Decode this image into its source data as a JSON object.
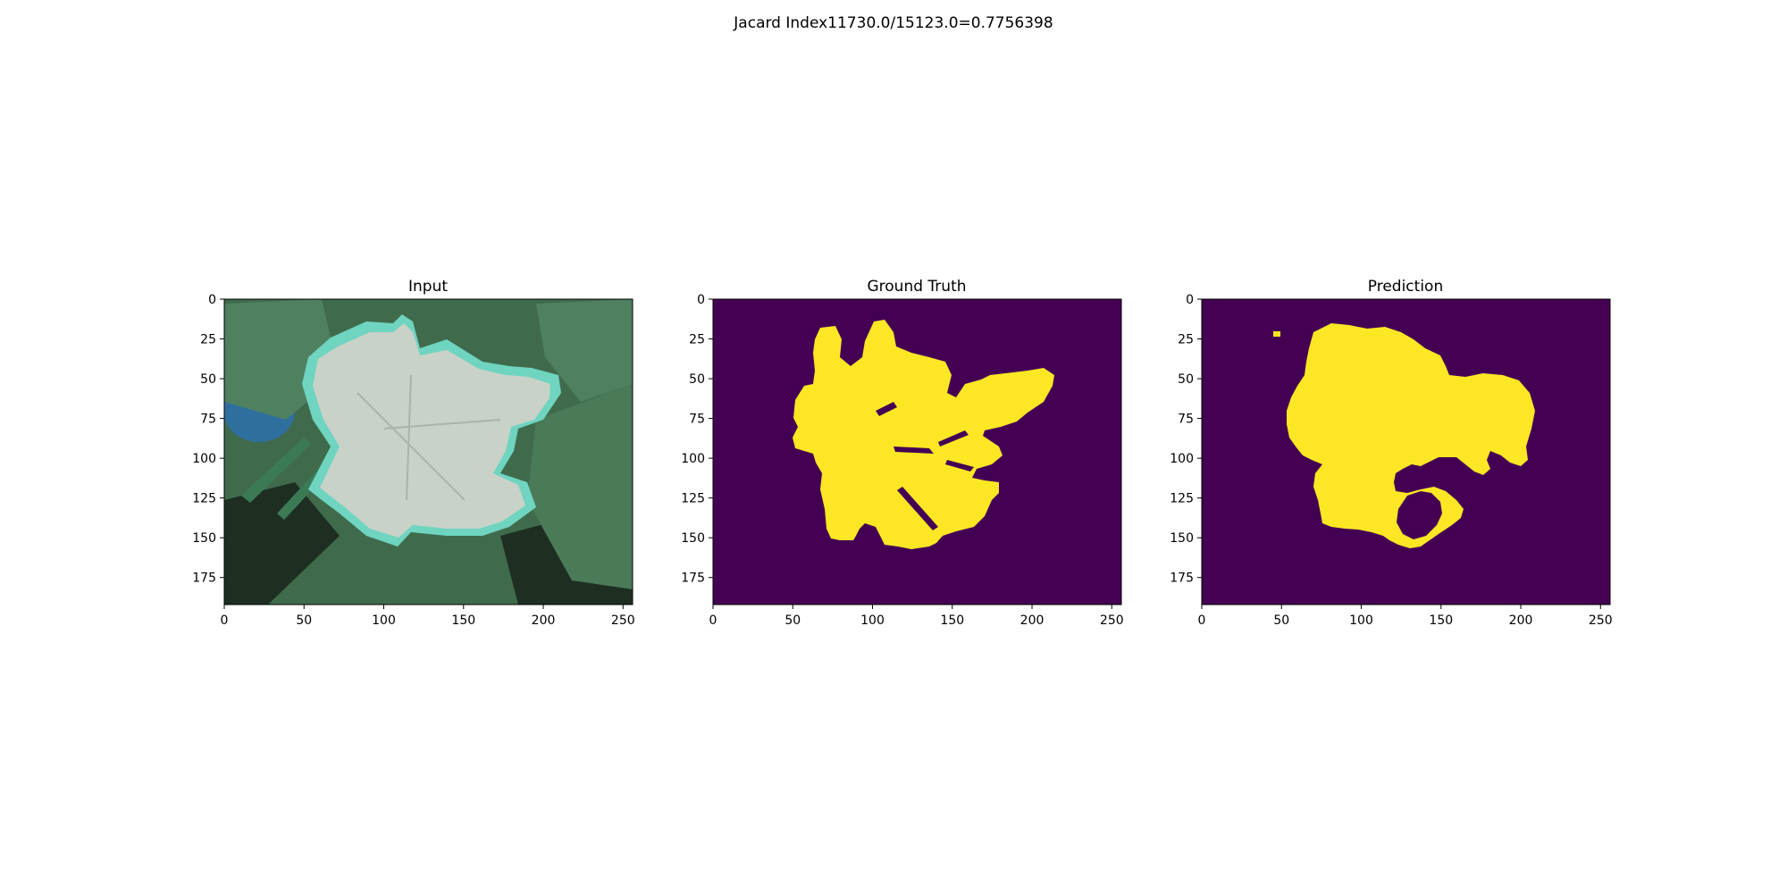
{
  "suptitle": "Jacard Index11730.0/15123.0=0.7756398",
  "chart_data": [
    {
      "type": "image",
      "title": "Input",
      "xlim": [
        0,
        256
      ],
      "ylim": [
        192,
        0
      ],
      "xticks": [
        0,
        50,
        100,
        150,
        200,
        250
      ],
      "yticks": [
        0,
        25,
        50,
        75,
        100,
        125,
        150,
        175
      ],
      "image": {
        "content": "leaf-photo",
        "colors": {
          "background_leaves": "#3f6b4c",
          "dark_shadow": "#1e2f22",
          "diseased_leaf": "#c8d2c8",
          "leaf_edge": "#6fd4c0",
          "blue_object": "#2f6fa0",
          "stem": "#3c7a55"
        }
      }
    },
    {
      "type": "heatmap",
      "title": "Ground Truth",
      "xlim": [
        0,
        256
      ],
      "ylim": [
        192,
        0
      ],
      "xticks": [
        0,
        50,
        100,
        150,
        200,
        250
      ],
      "yticks": [
        0,
        25,
        50,
        75,
        100,
        125,
        150,
        175
      ],
      "colors": {
        "background": "#440154",
        "mask": "#fde725"
      }
    },
    {
      "type": "heatmap",
      "title": "Prediction",
      "xlim": [
        0,
        256
      ],
      "ylim": [
        192,
        0
      ],
      "xticks": [
        0,
        50,
        100,
        150,
        200,
        250
      ],
      "yticks": [
        0,
        25,
        50,
        75,
        100,
        125,
        150,
        175
      ],
      "colors": {
        "background": "#440154",
        "mask": "#fde725"
      }
    }
  ]
}
